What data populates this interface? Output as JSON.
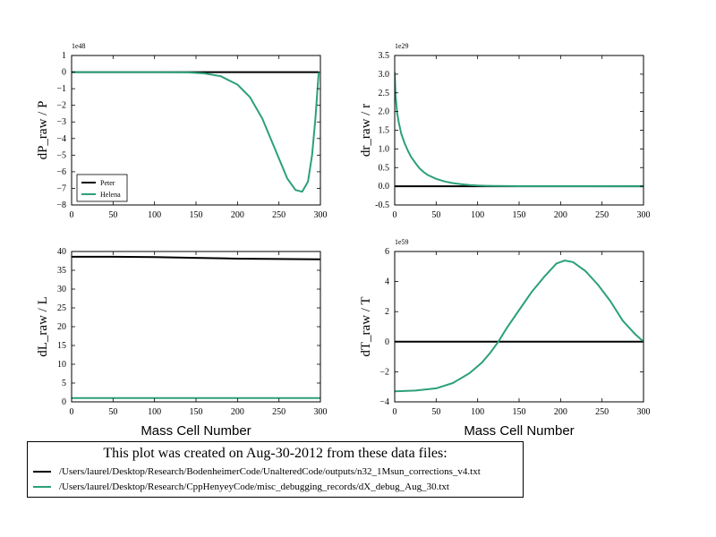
{
  "colors": {
    "peter": "#000000",
    "helena": "#2ca07a"
  },
  "chart_data": [
    {
      "type": "line",
      "ylabel": "dP_raw / P",
      "multiplier": "1e48",
      "xlim": [
        0,
        300
      ],
      "ylim": [
        -8,
        1
      ],
      "xticks": [
        0,
        50,
        100,
        150,
        200,
        250,
        300
      ],
      "yticks": [
        -8,
        -7,
        -6,
        -5,
        -4,
        -3,
        -2,
        -1,
        0,
        1
      ],
      "legend": {
        "location": "lower-left",
        "entries": [
          "Peter",
          "Helena"
        ]
      },
      "series": [
        {
          "name": "Peter",
          "x": [
            0,
            298
          ],
          "y": [
            0,
            0
          ]
        },
        {
          "name": "Helena",
          "x": [
            0,
            100,
            140,
            160,
            180,
            200,
            215,
            230,
            245,
            260,
            270,
            278,
            285,
            290,
            294,
            298
          ],
          "y": [
            0,
            0,
            -0.02,
            -0.08,
            -0.25,
            -0.75,
            -1.5,
            -2.8,
            -4.6,
            -6.4,
            -7.1,
            -7.2,
            -6.6,
            -5.0,
            -2.8,
            0
          ]
        }
      ]
    },
    {
      "type": "line",
      "ylabel": "dr_raw / r",
      "multiplier": "1e29",
      "xlim": [
        0,
        300
      ],
      "ylim": [
        -0.5,
        3.5
      ],
      "xticks": [
        0,
        50,
        100,
        150,
        200,
        250,
        300
      ],
      "yticks": [
        -0.5,
        0.0,
        0.5,
        1.0,
        1.5,
        2.0,
        2.5,
        3.0,
        3.5
      ],
      "series": [
        {
          "name": "Peter",
          "x": [
            0,
            300
          ],
          "y": [
            0,
            0
          ]
        },
        {
          "name": "Helena",
          "x": [
            0,
            1,
            3,
            5,
            8,
            12,
            16,
            20,
            25,
            30,
            35,
            40,
            50,
            60,
            70,
            80,
            90,
            100,
            110,
            120,
            150,
            200,
            300
          ],
          "y": [
            3.05,
            2.45,
            1.95,
            1.7,
            1.4,
            1.15,
            0.95,
            0.78,
            0.62,
            0.48,
            0.38,
            0.3,
            0.2,
            0.13,
            0.085,
            0.055,
            0.035,
            0.02,
            0.012,
            0.008,
            0.004,
            0.002,
            0.0
          ]
        }
      ]
    },
    {
      "type": "line",
      "ylabel": "dL_raw / L",
      "xlabel": "Mass Cell Number",
      "xlim": [
        0,
        300
      ],
      "ylim": [
        0,
        40
      ],
      "xticks": [
        0,
        50,
        100,
        150,
        200,
        250,
        300
      ],
      "yticks": [
        0,
        5,
        10,
        15,
        20,
        25,
        30,
        35,
        40
      ],
      "series": [
        {
          "name": "Peter",
          "x": [
            0,
            50,
            100,
            150,
            200,
            250,
            300
          ],
          "y": [
            38.6,
            38.6,
            38.5,
            38.3,
            38.1,
            38.0,
            37.9
          ]
        },
        {
          "name": "Helena",
          "x": [
            0,
            300
          ],
          "y": [
            1.0,
            1.0
          ]
        }
      ]
    },
    {
      "type": "line",
      "ylabel": "dT_raw / T",
      "xlabel": "Mass Cell Number",
      "multiplier": "1e59",
      "xlim": [
        0,
        300
      ],
      "ylim": [
        -4,
        6
      ],
      "xticks": [
        0,
        50,
        100,
        150,
        200,
        250,
        300
      ],
      "yticks": [
        -4,
        -2,
        0,
        2,
        4,
        6
      ],
      "series": [
        {
          "name": "Peter",
          "x": [
            0,
            300
          ],
          "y": [
            0,
            0
          ]
        },
        {
          "name": "Helena",
          "x": [
            0,
            25,
            50,
            70,
            90,
            105,
            115,
            125,
            135,
            150,
            165,
            180,
            195,
            205,
            215,
            230,
            245,
            260,
            275,
            290,
            300
          ],
          "y": [
            -3.3,
            -3.25,
            -3.1,
            -2.75,
            -2.1,
            -1.4,
            -0.75,
            0.0,
            0.9,
            2.1,
            3.3,
            4.3,
            5.2,
            5.4,
            5.3,
            4.7,
            3.8,
            2.7,
            1.4,
            0.5,
            0.0
          ]
        }
      ]
    }
  ],
  "footer": {
    "title": "This plot was created on Aug-30-2012 from these data files:",
    "files": [
      "/Users/laurel/Desktop/Research/BodenheimerCode/UnalteredCode/outputs/n32_1Msun_corrections_v4.txt",
      "/Users/laurel/Desktop/Research/CppHenyeyCode/misc_debugging_records/dX_debug_Aug_30.txt"
    ]
  }
}
